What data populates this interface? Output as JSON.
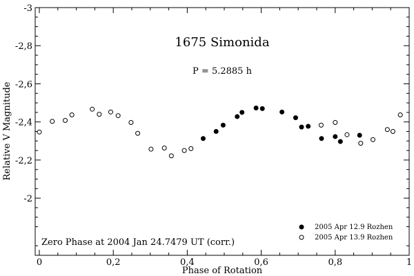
{
  "chart_data": {
    "type": "scatter",
    "title": "1675 Simonida",
    "subtitle": "P = 5.2885 h",
    "xlabel": "Phase of Rotation",
    "ylabel": "Relative V Magnitude",
    "xlim": [
      0,
      1
    ],
    "ylim": [
      -3.0,
      -1.7
    ],
    "y_inverted": true,
    "x_ticks": [
      0,
      0.2,
      0.4,
      0.6,
      0.8,
      1.0
    ],
    "x_tick_labels": [
      "0",
      "0,2",
      "0,4",
      "0,6",
      "0,8",
      "1"
    ],
    "y_ticks": [
      -3.0,
      -2.8,
      -2.6,
      -2.4,
      -2.2,
      -2.0
    ],
    "y_tick_labels": [
      "-3",
      "-2,8",
      "-2,6",
      "-2,4",
      "-2,2",
      "-2"
    ],
    "annotation": "Zero Phase at 2004 Jan 24.7479 UT (corr.)",
    "legend_position": "bottom-right",
    "series": [
      {
        "name": "2005 Apr 12.9 Rozhen",
        "marker": "filled-circle",
        "color": "#000000",
        "x": [
          0.443,
          0.478,
          0.497,
          0.535,
          0.548,
          0.586,
          0.603,
          0.656,
          0.693,
          0.709,
          0.727,
          0.763,
          0.8,
          0.814,
          0.866
        ],
        "y": [
          -2.313,
          -2.35,
          -2.383,
          -2.428,
          -2.45,
          -2.473,
          -2.47,
          -2.452,
          -2.422,
          -2.373,
          -2.377,
          -2.313,
          -2.323,
          -2.297,
          -2.33
        ]
      },
      {
        "name": "2005 Apr 13.9 Rozhen",
        "marker": "open-circle",
        "color": "#000000",
        "x": [
          0.0,
          0.035,
          0.07,
          0.088,
          0.143,
          0.162,
          0.193,
          0.213,
          0.248,
          0.266,
          0.302,
          0.338,
          0.357,
          0.392,
          0.41,
          0.762,
          0.8,
          0.832,
          0.869,
          0.902,
          0.941,
          0.956,
          0.976
        ],
        "y": [
          -2.347,
          -2.403,
          -2.408,
          -2.437,
          -2.467,
          -2.44,
          -2.452,
          -2.433,
          -2.397,
          -2.34,
          -2.257,
          -2.263,
          -2.222,
          -2.25,
          -2.26,
          -2.383,
          -2.397,
          -2.333,
          -2.288,
          -2.307,
          -2.36,
          -2.35,
          -2.437
        ]
      }
    ]
  }
}
